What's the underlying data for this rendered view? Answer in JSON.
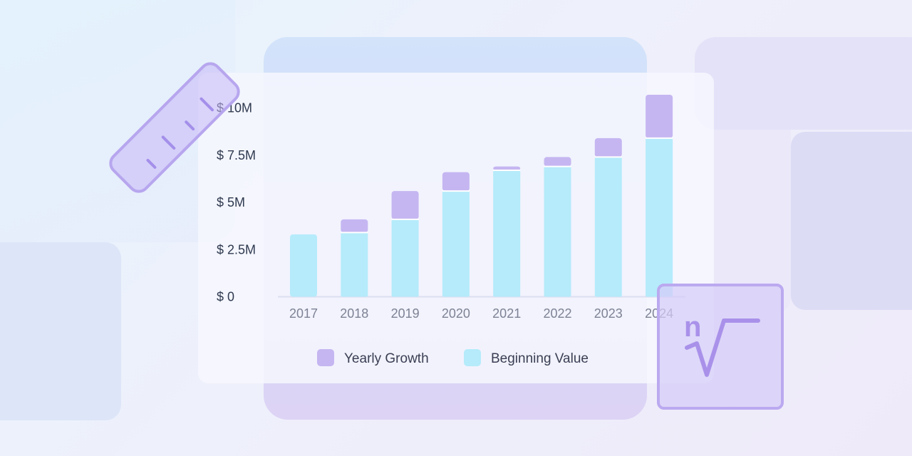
{
  "chart_data": {
    "type": "bar",
    "stacked": true,
    "categories": [
      "2017",
      "2018",
      "2019",
      "2020",
      "2021",
      "2022",
      "2023",
      "2024"
    ],
    "series": [
      {
        "name": "Beginning Value",
        "color": "#b5ebfb",
        "values": [
          3.3,
          3.4,
          4.1,
          5.6,
          6.7,
          6.9,
          7.4,
          8.4
        ]
      },
      {
        "name": "Yearly Growth",
        "color": "#c5b6f1",
        "values": [
          0.0,
          0.7,
          1.5,
          1.0,
          0.2,
          0.5,
          1.0,
          2.3
        ]
      }
    ],
    "y_tick_labels": [
      "$ 0",
      "$ 2.5M",
      "$ 5M",
      "$ 7.5M",
      "$ 10M"
    ],
    "y_tick_values": [
      0,
      2.5,
      5,
      7.5,
      10
    ],
    "ylim": [
      0,
      10
    ],
    "yunit": "M",
    "title": "",
    "xlabel": "",
    "ylabel": "",
    "legend": [
      {
        "label": "Yearly Growth",
        "color": "#c5b6f1"
      },
      {
        "label": "Beginning Value",
        "color": "#b5ebfb"
      }
    ],
    "legend_position": "bottom-center",
    "grid": false
  },
  "decorations": {
    "ruler_icon": "ruler-icon",
    "nth_root_icon": "nth-root-icon",
    "nth_root_index": "n",
    "nth_root_symbol": "√"
  }
}
